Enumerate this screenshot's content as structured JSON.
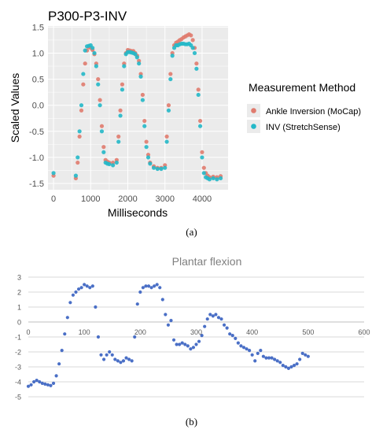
{
  "colors": {
    "panel_bg": "#ebebeb",
    "grid": "#ffffff",
    "mocap": "#e07b6e",
    "stretchsense": "#23b8c8",
    "line_b": "#4a6fc6",
    "grid_b": "#d9d9d9"
  },
  "captions": {
    "a": "(a)",
    "b": "(b)"
  },
  "chart_data": [
    {
      "type": "scatter",
      "title": "P300-P3-INV",
      "xlabel": "Milliseconds",
      "ylabel": "Scaled Values",
      "xlim": [
        -150,
        4700
      ],
      "ylim": [
        -1.62,
        1.52
      ],
      "grid": true,
      "legend": {
        "title": "Measurement Method",
        "position": "right",
        "entries": [
          "Ankle Inversion (MoCap)",
          "INV (StretchSense)"
        ]
      },
      "xticks": [
        0,
        1000,
        2000,
        3000,
        4000
      ],
      "yticks": [
        -1.5,
        -1.0,
        -0.5,
        0.0,
        0.5,
        1.0,
        1.5
      ],
      "ytick_labels": [
        "-1.5",
        "-1.0",
        "-0.5",
        "0.0",
        "0.5",
        "1.0",
        "1.5"
      ],
      "series": [
        {
          "name": "Ankle Inversion (MoCap)",
          "x": [
            0,
            600,
            650,
            700,
            750,
            800,
            850,
            900,
            950,
            1000,
            1050,
            1100,
            1150,
            1200,
            1250,
            1300,
            1350,
            1400,
            1450,
            1500,
            1600,
            1700,
            1750,
            1800,
            1850,
            1900,
            1950,
            2000,
            2050,
            2100,
            2150,
            2200,
            2250,
            2300,
            2350,
            2400,
            2450,
            2500,
            2550,
            2600,
            2700,
            2800,
            2900,
            3000,
            3050,
            3100,
            3150,
            3200,
            3250,
            3300,
            3350,
            3400,
            3450,
            3500,
            3550,
            3600,
            3650,
            3700,
            3750,
            3800,
            3850,
            3900,
            3950,
            4000,
            4050,
            4100,
            4150,
            4200,
            4300,
            4400,
            4500
          ],
          "y": [
            -1.35,
            -1.4,
            -1.1,
            -0.6,
            -0.1,
            0.4,
            0.8,
            1.05,
            1.12,
            1.1,
            1.06,
            0.98,
            0.8,
            0.5,
            0.1,
            -0.4,
            -0.8,
            -1.05,
            -1.08,
            -1.1,
            -1.1,
            -1.05,
            -0.6,
            -0.1,
            0.4,
            0.8,
            1.0,
            1.06,
            1.05,
            1.04,
            1.04,
            1.0,
            0.95,
            0.85,
            0.6,
            0.2,
            -0.3,
            -0.7,
            -0.95,
            -1.1,
            -1.17,
            -1.2,
            -1.2,
            -1.15,
            -0.6,
            0.0,
            0.6,
            1.0,
            1.15,
            1.2,
            1.22,
            1.25,
            1.27,
            1.3,
            1.32,
            1.34,
            1.36,
            1.34,
            1.25,
            1.1,
            0.8,
            0.3,
            -0.3,
            -0.9,
            -1.2,
            -1.3,
            -1.35,
            -1.38,
            -1.37,
            -1.38,
            -1.36
          ]
        },
        {
          "name": "INV (StretchSense)",
          "x": [
            0,
            600,
            650,
            700,
            750,
            800,
            850,
            900,
            950,
            1000,
            1050,
            1100,
            1150,
            1200,
            1250,
            1300,
            1350,
            1400,
            1450,
            1500,
            1600,
            1700,
            1750,
            1800,
            1850,
            1900,
            1950,
            2000,
            2050,
            2100,
            2150,
            2200,
            2250,
            2300,
            2350,
            2400,
            2450,
            2500,
            2550,
            2600,
            2700,
            2800,
            2900,
            3000,
            3050,
            3100,
            3150,
            3200,
            3250,
            3300,
            3350,
            3400,
            3450,
            3500,
            3550,
            3600,
            3650,
            3700,
            3750,
            3800,
            3850,
            3900,
            3950,
            4000,
            4050,
            4100,
            4150,
            4200,
            4300,
            4400,
            4500
          ],
          "y": [
            -1.3,
            -1.35,
            -1.0,
            -0.5,
            0.0,
            0.6,
            1.05,
            1.13,
            1.14,
            1.15,
            1.1,
            1.0,
            0.75,
            0.4,
            0.0,
            -0.5,
            -0.9,
            -1.1,
            -1.12,
            -1.13,
            -1.15,
            -1.1,
            -0.7,
            -0.2,
            0.3,
            0.75,
            0.98,
            1.02,
            1.02,
            1.01,
            1.0,
            0.98,
            0.92,
            0.8,
            0.55,
            0.1,
            -0.4,
            -0.8,
            -1.0,
            -1.12,
            -1.2,
            -1.22,
            -1.22,
            -1.2,
            -0.7,
            -0.1,
            0.5,
            0.95,
            1.1,
            1.15,
            1.15,
            1.17,
            1.18,
            1.18,
            1.17,
            1.17,
            1.18,
            1.15,
            1.1,
            1.0,
            0.7,
            0.2,
            -0.4,
            -1.0,
            -1.3,
            -1.38,
            -1.4,
            -1.42,
            -1.4,
            -1.42,
            -1.4
          ]
        }
      ]
    },
    {
      "type": "scatter",
      "title": "Plantar flexion",
      "xlabel": "",
      "ylabel": "",
      "xlim": [
        0,
        600
      ],
      "ylim": [
        -5,
        3
      ],
      "grid": true,
      "xticks": [
        0,
        100,
        200,
        300,
        400,
        500,
        600
      ],
      "yticks": [
        -5,
        -4,
        -3,
        -2,
        -1,
        0,
        1,
        2,
        3
      ],
      "series": [
        {
          "name": "",
          "x": [
            0,
            5,
            10,
            15,
            20,
            25,
            30,
            35,
            40,
            45,
            50,
            55,
            60,
            65,
            70,
            75,
            80,
            85,
            90,
            95,
            100,
            105,
            110,
            115,
            120,
            125,
            130,
            135,
            140,
            145,
            150,
            155,
            160,
            165,
            170,
            175,
            180,
            185,
            190,
            195,
            200,
            205,
            210,
            215,
            220,
            225,
            230,
            235,
            240,
            245,
            250,
            255,
            260,
            265,
            270,
            275,
            280,
            285,
            290,
            295,
            300,
            305,
            310,
            315,
            320,
            325,
            330,
            335,
            340,
            345,
            350,
            355,
            360,
            365,
            370,
            375,
            380,
            385,
            390,
            395,
            400,
            405,
            410,
            415,
            420,
            425,
            430,
            435,
            440,
            445,
            450,
            455,
            460,
            465,
            470,
            475,
            480,
            485,
            490,
            495,
            500
          ],
          "y": [
            -4.3,
            -4.2,
            -4.0,
            -3.9,
            -4.0,
            -4.1,
            -4.15,
            -4.2,
            -4.25,
            -4.1,
            -3.6,
            -2.8,
            -1.9,
            -0.8,
            0.3,
            1.3,
            1.8,
            2.0,
            2.2,
            2.3,
            2.5,
            2.4,
            2.3,
            2.4,
            1.0,
            -1.0,
            -2.2,
            -2.5,
            -2.2,
            -2.0,
            -2.2,
            -2.5,
            -2.6,
            -2.7,
            -2.6,
            -2.4,
            -2.5,
            -2.6,
            -1.0,
            1.2,
            2.0,
            2.3,
            2.4,
            2.4,
            2.3,
            2.4,
            2.5,
            2.3,
            1.5,
            0.5,
            -0.2,
            0.1,
            -1.2,
            -1.5,
            -1.5,
            -1.4,
            -1.5,
            -1.6,
            -1.8,
            -1.7,
            -1.5,
            -1.3,
            -0.9,
            -0.3,
            0.2,
            0.5,
            0.4,
            0.5,
            0.3,
            0.2,
            -0.2,
            -0.4,
            -0.8,
            -0.9,
            -1.1,
            -1.4,
            -1.6,
            -1.7,
            -1.8,
            -1.9,
            -2.2,
            -2.6,
            -2.1,
            -1.9,
            -2.3,
            -2.4,
            -2.4,
            -2.4,
            -2.5,
            -2.6,
            -2.7,
            -2.9,
            -3.0,
            -3.1,
            -3.0,
            -2.9,
            -2.8,
            -2.5,
            -2.1,
            -2.2,
            -2.3
          ]
        }
      ]
    }
  ]
}
